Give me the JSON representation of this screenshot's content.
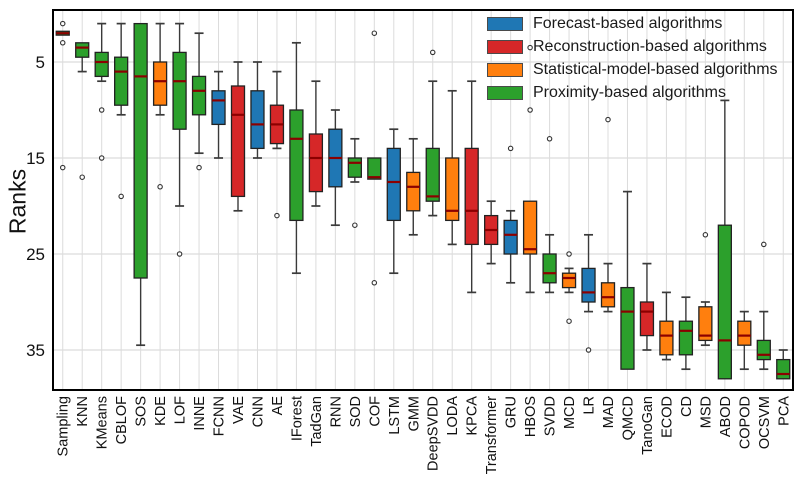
{
  "chart_data": {
    "type": "boxplot",
    "title": "",
    "ylabel": "Ranks",
    "xlabel": "",
    "y_axis": {
      "ticks": [
        5,
        15,
        25,
        35
      ],
      "inverted": true,
      "range_top": 0,
      "range_bottom": 39,
      "grid": true
    },
    "legend_position": "upper right",
    "legend": [
      {
        "key": "forecast",
        "label": "Forecast-based algorithms",
        "color": "#1f77b4"
      },
      {
        "key": "reconstruction",
        "label": "Reconstruction-based algorithms",
        "color": "#d62728"
      },
      {
        "key": "statistical",
        "label": "Statistical-model-based algorithms",
        "color": "#ff7f0e"
      },
      {
        "key": "proximity",
        "label": "Proximity-based algorithms",
        "color": "#2ca02c"
      }
    ],
    "colors": {
      "forecast": "#1f77b4",
      "reconstruction": "#d62728",
      "statistical": "#ff7f0e",
      "proximity": "#2ca02c"
    },
    "median_color": "#8b0000",
    "grid_color": "#dcdcdc",
    "boxes": [
      {
        "name": "Sampling",
        "cat": "proximity",
        "min": 1.8,
        "q1": 1.8,
        "med": 2,
        "q3": 2.2,
        "max": 2.2,
        "out": [
          1,
          3,
          16
        ]
      },
      {
        "name": "KNN",
        "cat": "proximity",
        "min": 3,
        "q1": 3,
        "med": 3.5,
        "q3": 4.5,
        "max": 6,
        "out": [
          17
        ]
      },
      {
        "name": "KMeans",
        "cat": "proximity",
        "min": 1,
        "q1": 4,
        "med": 5,
        "q3": 6.5,
        "max": 7,
        "out": [
          10,
          15
        ]
      },
      {
        "name": "CBLOF",
        "cat": "proximity",
        "min": 1,
        "q1": 4.5,
        "med": 6,
        "q3": 9.5,
        "max": 10.5,
        "out": [
          19
        ]
      },
      {
        "name": "SOS",
        "cat": "proximity",
        "min": 1,
        "q1": 1,
        "med": 6.5,
        "q3": 27.5,
        "max": 34.5,
        "out": []
      },
      {
        "name": "KDE",
        "cat": "statistical",
        "min": 1,
        "q1": 5,
        "med": 7,
        "q3": 9.5,
        "max": 10.5,
        "out": [
          18
        ]
      },
      {
        "name": "LOF",
        "cat": "proximity",
        "min": 1,
        "q1": 4,
        "med": 7,
        "q3": 12,
        "max": 20,
        "out": [
          25
        ]
      },
      {
        "name": "INNE",
        "cat": "proximity",
        "min": 2,
        "q1": 6.5,
        "med": 8,
        "q3": 10.5,
        "max": 14.5,
        "out": [
          16
        ]
      },
      {
        "name": "FCNN",
        "cat": "forecast",
        "min": 6,
        "q1": 8,
        "med": 9,
        "q3": 11.5,
        "max": 15,
        "out": []
      },
      {
        "name": "VAE",
        "cat": "reconstruction",
        "min": 5,
        "q1": 7.5,
        "med": 10.5,
        "q3": 19,
        "max": 20.5,
        "out": []
      },
      {
        "name": "CNN",
        "cat": "forecast",
        "min": 5,
        "q1": 8,
        "med": 11.5,
        "q3": 14,
        "max": 15,
        "out": []
      },
      {
        "name": "AE",
        "cat": "reconstruction",
        "min": 6,
        "q1": 9.5,
        "med": 11.5,
        "q3": 13.5,
        "max": 14,
        "out": [
          21
        ]
      },
      {
        "name": "IForest",
        "cat": "proximity",
        "min": 3,
        "q1": 10,
        "med": 13,
        "q3": 21.5,
        "max": 27,
        "out": []
      },
      {
        "name": "TadGan",
        "cat": "reconstruction",
        "min": 7,
        "q1": 12.5,
        "med": 15,
        "q3": 18.5,
        "max": 20,
        "out": []
      },
      {
        "name": "RNN",
        "cat": "forecast",
        "min": 10,
        "q1": 12,
        "med": 15,
        "q3": 18,
        "max": 22,
        "out": []
      },
      {
        "name": "SOD",
        "cat": "proximity",
        "min": 13,
        "q1": 15,
        "med": 15.5,
        "q3": 17,
        "max": 17.5,
        "out": [
          22
        ]
      },
      {
        "name": "COF",
        "cat": "proximity",
        "min": 15,
        "q1": 15,
        "med": 17,
        "q3": 17.2,
        "max": 17.2,
        "out": [
          2,
          28
        ]
      },
      {
        "name": "LSTM",
        "cat": "forecast",
        "min": 12,
        "q1": 14,
        "med": 17.5,
        "q3": 21.5,
        "max": 27,
        "out": []
      },
      {
        "name": "GMM",
        "cat": "statistical",
        "min": 13,
        "q1": 16.5,
        "med": 18,
        "q3": 20.5,
        "max": 23,
        "out": []
      },
      {
        "name": "DeepSVDD",
        "cat": "proximity",
        "min": 7,
        "q1": 14,
        "med": 19,
        "q3": 19.5,
        "max": 21,
        "out": [
          4
        ]
      },
      {
        "name": "LODA",
        "cat": "statistical",
        "min": 8,
        "q1": 15,
        "med": 20.5,
        "q3": 21.5,
        "max": 24,
        "out": []
      },
      {
        "name": "KPCA",
        "cat": "reconstruction",
        "min": 7,
        "q1": 14,
        "med": 20.5,
        "q3": 24,
        "max": 29,
        "out": []
      },
      {
        "name": "Transformer",
        "cat": "reconstruction",
        "min": 19.5,
        "q1": 21,
        "med": 22.5,
        "q3": 24,
        "max": 26,
        "out": []
      },
      {
        "name": "GRU",
        "cat": "forecast",
        "min": 20.5,
        "q1": 21.5,
        "med": 23,
        "q3": 25,
        "max": 28,
        "out": [
          14
        ]
      },
      {
        "name": "HBOS",
        "cat": "statistical",
        "min": 19.5,
        "q1": 19.5,
        "med": 24.5,
        "q3": 25,
        "max": 29,
        "out": [
          3.5,
          10
        ]
      },
      {
        "name": "SVDD",
        "cat": "proximity",
        "min": 23,
        "q1": 25,
        "med": 27,
        "q3": 28,
        "max": 29,
        "out": [
          13
        ]
      },
      {
        "name": "MCD",
        "cat": "statistical",
        "min": 26.5,
        "q1": 27,
        "med": 27.5,
        "q3": 28.5,
        "max": 29,
        "out": [
          25,
          32
        ]
      },
      {
        "name": "LR",
        "cat": "forecast",
        "min": 23,
        "q1": 26.5,
        "med": 29,
        "q3": 30,
        "max": 31,
        "out": [
          35
        ]
      },
      {
        "name": "MAD",
        "cat": "statistical",
        "min": 26,
        "q1": 28,
        "med": 29.5,
        "q3": 30.5,
        "max": 31,
        "out": [
          11
        ]
      },
      {
        "name": "QMCD",
        "cat": "proximity",
        "min": 18.5,
        "q1": 28.5,
        "med": 31,
        "q3": 37,
        "max": 37,
        "out": []
      },
      {
        "name": "TanoGan",
        "cat": "reconstruction",
        "min": 26,
        "q1": 30,
        "med": 31,
        "q3": 33.5,
        "max": 35,
        "out": []
      },
      {
        "name": "ECOD",
        "cat": "statistical",
        "min": 29,
        "q1": 32,
        "med": 33.5,
        "q3": 35.5,
        "max": 36,
        "out": []
      },
      {
        "name": "CD",
        "cat": "proximity",
        "min": 29.5,
        "q1": 32,
        "med": 33,
        "q3": 35.5,
        "max": 37,
        "out": []
      },
      {
        "name": "MSD",
        "cat": "statistical",
        "min": 30,
        "q1": 30.5,
        "med": 33.5,
        "q3": 34,
        "max": 34.5,
        "out": [
          23
        ]
      },
      {
        "name": "ABOD",
        "cat": "proximity",
        "min": 9,
        "q1": 22,
        "med": 34,
        "q3": 38,
        "max": 38,
        "out": []
      },
      {
        "name": "COPOD",
        "cat": "statistical",
        "min": 31,
        "q1": 32,
        "med": 33.5,
        "q3": 34.5,
        "max": 37,
        "out": []
      },
      {
        "name": "OCSVM",
        "cat": "proximity",
        "min": 31,
        "q1": 34,
        "med": 35.5,
        "q3": 36,
        "max": 37,
        "out": [
          24
        ]
      },
      {
        "name": "PCA",
        "cat": "proximity",
        "min": 35,
        "q1": 36,
        "med": 37.5,
        "q3": 38,
        "max": 38,
        "out": []
      }
    ]
  }
}
